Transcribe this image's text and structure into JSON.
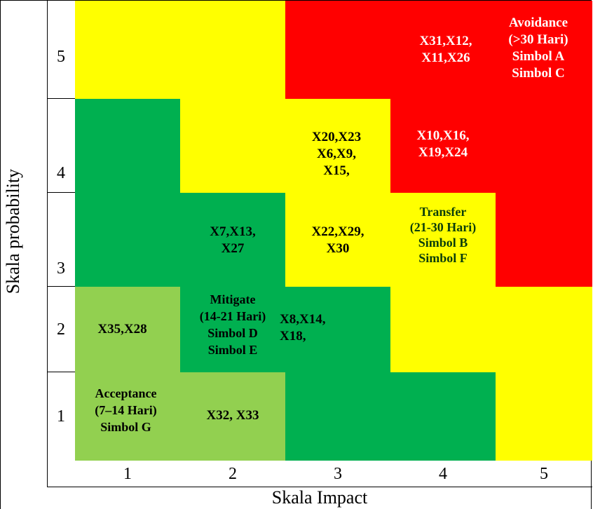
{
  "axes": {
    "y_label": "Skala  probability",
    "x_label": "Skala Impact",
    "rows": [
      "5",
      "4",
      "3",
      "2",
      "1"
    ],
    "cols": [
      "1",
      "2",
      "3",
      "4",
      "5"
    ]
  },
  "colors": {
    "red": "#ff0000",
    "yellow": "#ffff00",
    "green": "#00b050",
    "light_green": "#92d050"
  },
  "labels": {
    "avoidance": "Avoidance\n(>30 Hari)\nSimbol A\nSimbol C",
    "r5c4": "X31,X12,\nX11,X26",
    "r4c4": "X10,X16,\nX19,X24",
    "r4c3": "X20,X23\nX6,X9,\nX15,",
    "r3c3": "X22,X29,\nX30",
    "transfer": "Transfer\n(21-30 Hari)\nSimbol B\nSimbol F",
    "r3c2": "X7,X13,\nX27",
    "mitigate": "Mitigate\n(14-21 Hari)\nSimbol D\nSimbol E",
    "r2c3": "X8,X14,\nX18,",
    "r2c1": "X35,X28",
    "acceptance": "Acceptance\n(7–14 Hari)\nSimbol G",
    "r1c2": "X32, X33"
  }
}
